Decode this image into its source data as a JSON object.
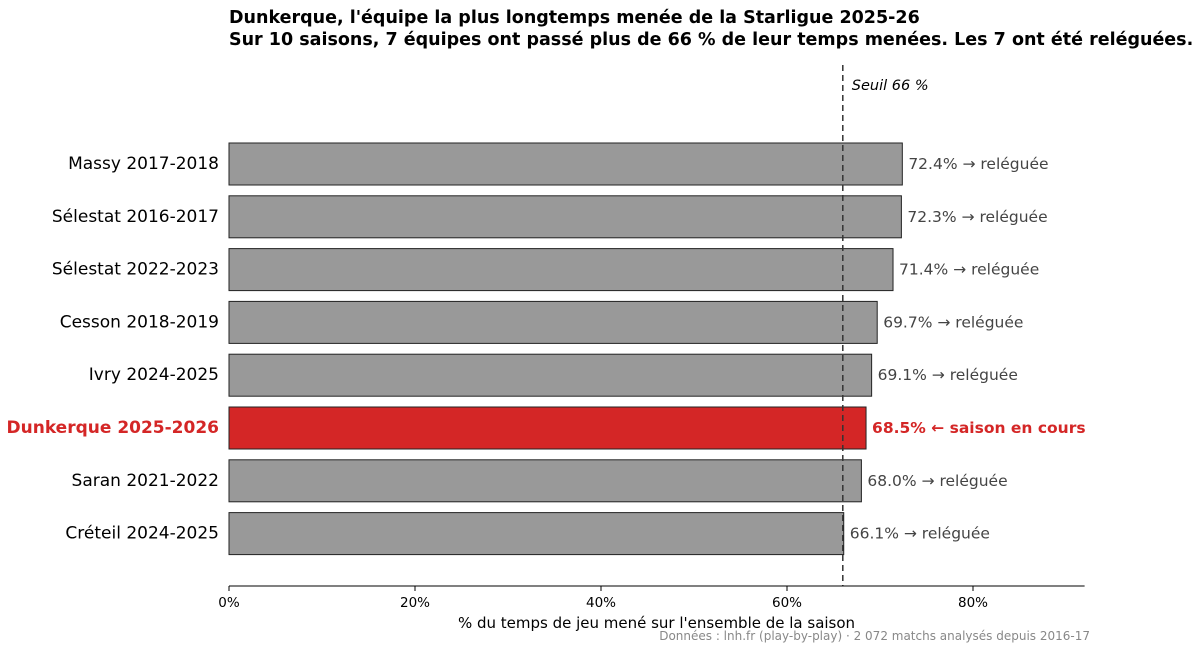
{
  "title": "Dunkerque, l'équipe la plus longtemps menée de la Starligue 2025-26",
  "subtitle": "Sur 10 saisons, 7 équipes ont passé plus de 66 % de leur temps menées. Les 7 ont été reléguées.",
  "source": "Données : lnh.fr (play-by-play) · 2 072 matchs analysés depuis 2016-17",
  "colors": {
    "bar": "#999999",
    "highlight": "#d42626",
    "annotation": "#444444"
  },
  "chart_data": {
    "type": "bar",
    "orientation": "horizontal",
    "xlabel": "% du temps de jeu mené sur l'ensemble de la saison",
    "xlim": [
      0,
      92
    ],
    "xticks": [
      {
        "value": 0,
        "label": "0%"
      },
      {
        "value": 20,
        "label": "20%"
      },
      {
        "value": 40,
        "label": "40%"
      },
      {
        "value": 60,
        "label": "60%"
      },
      {
        "value": 80,
        "label": "80%"
      }
    ],
    "threshold": {
      "value": 66,
      "label": "Seuil 66 %"
    },
    "bars": [
      {
        "category": "Massy 2017-2018",
        "value": 72.4,
        "label": "72.4%  → reléguée",
        "highlight": false
      },
      {
        "category": "Sélestat 2016-2017",
        "value": 72.3,
        "label": "72.3%  → reléguée",
        "highlight": false
      },
      {
        "category": "Sélestat 2022-2023",
        "value": 71.4,
        "label": "71.4%  → reléguée",
        "highlight": false
      },
      {
        "category": "Cesson 2018-2019",
        "value": 69.7,
        "label": "69.7%  → reléguée",
        "highlight": false
      },
      {
        "category": "Ivry 2024-2025",
        "value": 69.1,
        "label": "69.1%  → reléguée",
        "highlight": false
      },
      {
        "category": "Dunkerque 2025-2026",
        "value": 68.5,
        "label": "68.5%  ← saison en cours",
        "highlight": true
      },
      {
        "category": "Saran 2021-2022",
        "value": 68.0,
        "label": "68.0%  → reléguée",
        "highlight": false
      },
      {
        "category": "Créteil 2024-2025",
        "value": 66.1,
        "label": "66.1%  → reléguée",
        "highlight": false
      }
    ]
  }
}
